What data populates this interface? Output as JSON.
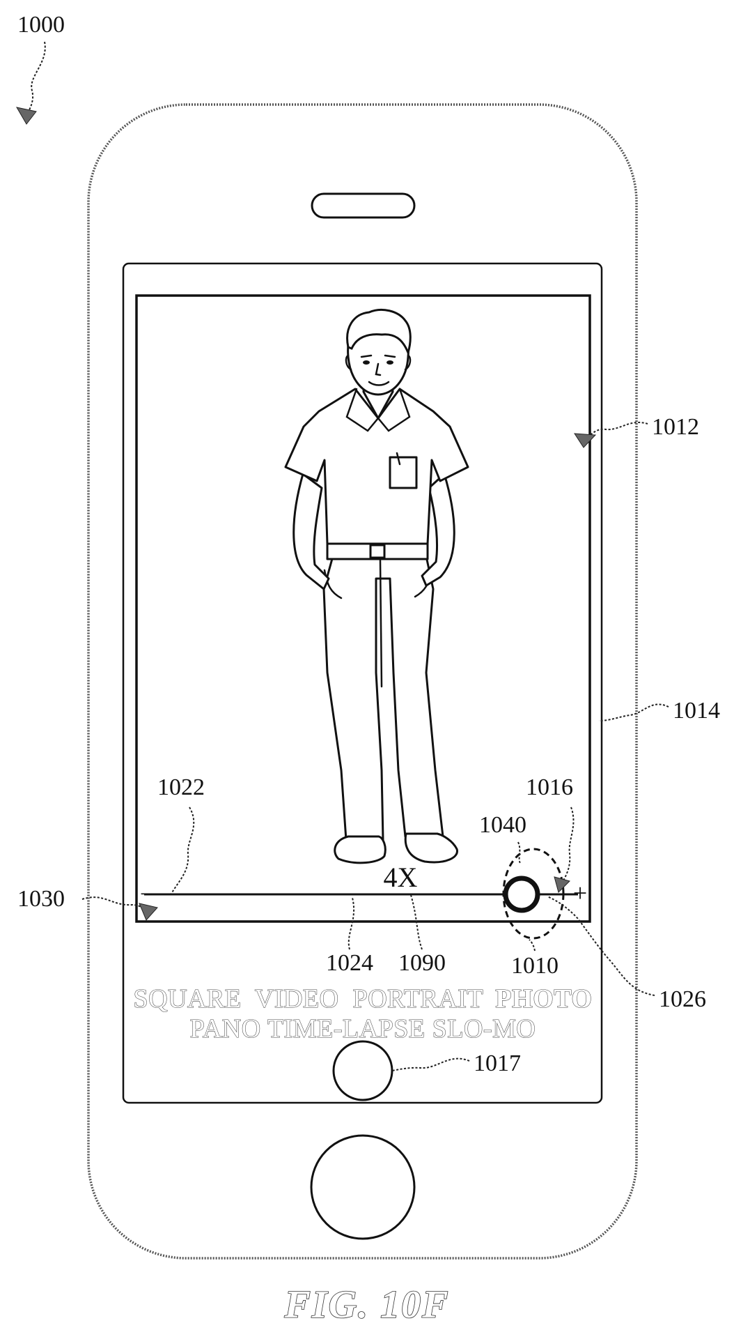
{
  "figure": {
    "label": "FIG. 10F",
    "refs": {
      "device": "1000",
      "viewfinder": "1012",
      "display": "1014",
      "zoom_control_end": "1016",
      "shutter": "1017",
      "zoom_control": "1022",
      "indicator_line": "1024",
      "current_position": "1026",
      "min_end": "1030",
      "touch_area": "1040",
      "handle": "1010",
      "magnification": "1090"
    }
  },
  "camera_ui": {
    "zoom_level": "4X",
    "slider_min_label": "−",
    "slider_max_label": "+",
    "zoom_fraction": 0.87,
    "modes_row1": [
      "SQUARE",
      "VIDEO",
      "PORTRAIT"
    ],
    "selected_mode": "PHOTO",
    "modes_row2": "PANO TIME-LAPSE SLO-MO"
  }
}
